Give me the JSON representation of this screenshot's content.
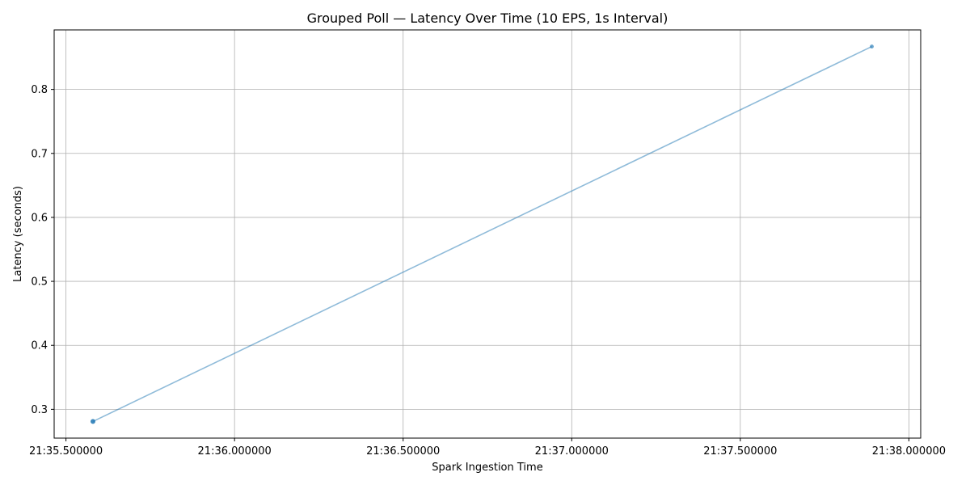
{
  "chart_data": {
    "type": "line",
    "title": "Grouped Poll — Latency Over Time (10 EPS, 1s Interval)",
    "xlabel": "Spark Ingestion Time",
    "ylabel": "Latency (seconds)",
    "x_axis_type": "time",
    "xlim": [
      "21:35.465",
      "21:38.035"
    ],
    "ylim": [
      0.255,
      0.893
    ],
    "x_ticks": [
      {
        "value": "21:35.500",
        "label": "21:35.500000"
      },
      {
        "value": "21:36.000",
        "label": "21:36.000000"
      },
      {
        "value": "21:36.500",
        "label": "21:36.500000"
      },
      {
        "value": "21:37.000",
        "label": "21:37.000000"
      },
      {
        "value": "21:37.500",
        "label": "21:37.500000"
      },
      {
        "value": "21:38.000",
        "label": "21:38.000000"
      }
    ],
    "y_ticks": [
      0.3,
      0.4,
      0.5,
      0.6,
      0.7,
      0.8
    ],
    "grid": true,
    "series": [
      {
        "color": "#1f77b4",
        "points": [
          {
            "x": "21:35.580",
            "y": 0.281
          },
          {
            "x": "21:37.890",
            "y": 0.867
          }
        ]
      }
    ]
  }
}
